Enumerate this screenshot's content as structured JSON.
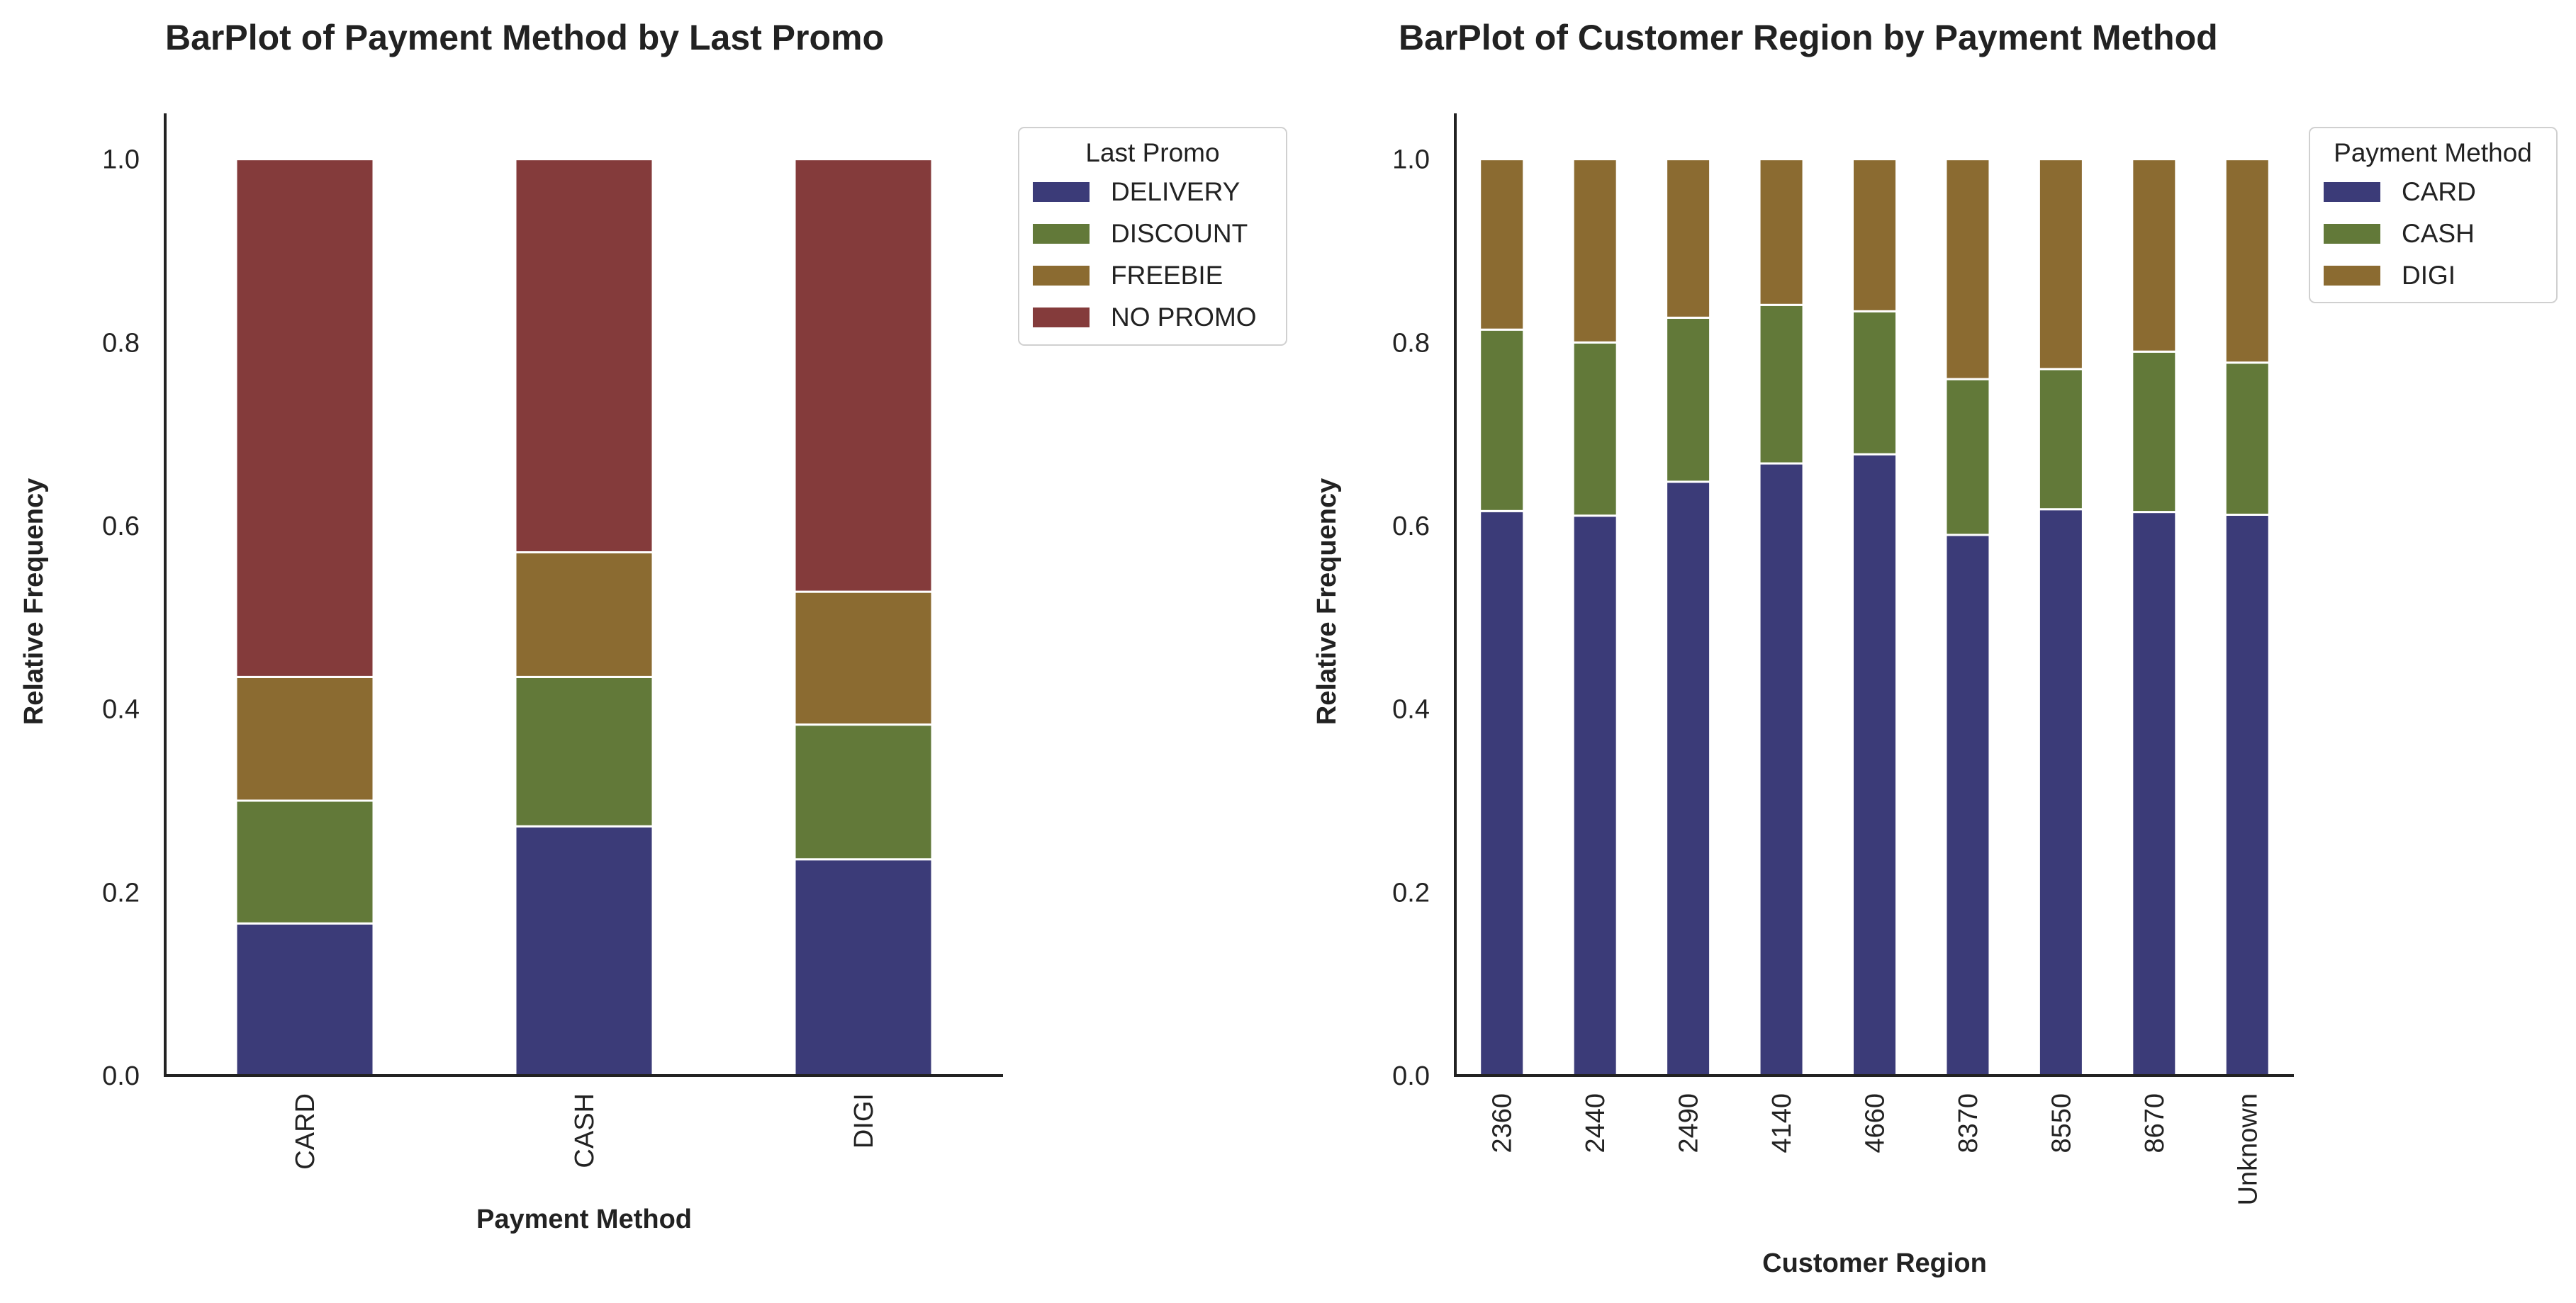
{
  "chart_data": [
    {
      "type": "bar",
      "stacked": true,
      "title": "BarPlot of Payment Method by Last Promo",
      "xlabel": "Payment Method",
      "ylabel": "Relative Frequency",
      "categories": [
        "CARD",
        "CASH",
        "DIGI"
      ],
      "ylim": [
        0,
        1.05
      ],
      "yticks": [
        "0.0",
        "0.2",
        "0.4",
        "0.6",
        "0.8",
        "1.0"
      ],
      "legend_title": "Last Promo",
      "legend_position": "outside-top-right",
      "grid": false,
      "series": [
        {
          "name": "DELIVERY",
          "color": "#3b3b78",
          "values": [
            0.166,
            0.272,
            0.236
          ]
        },
        {
          "name": "DISCOUNT",
          "color": "#627939",
          "values": [
            0.134,
            0.163,
            0.147
          ]
        },
        {
          "name": "FREEBIE",
          "color": "#8b6b31",
          "values": [
            0.135,
            0.136,
            0.145
          ]
        },
        {
          "name": "NO PROMO",
          "color": "#843b3b",
          "values": [
            0.565,
            0.429,
            0.472
          ]
        }
      ]
    },
    {
      "type": "bar",
      "stacked": true,
      "title": "BarPlot of Customer Region by Payment Method",
      "xlabel": "Customer Region",
      "ylabel": "Relative Frequency",
      "categories": [
        "2360",
        "2440",
        "2490",
        "4140",
        "4660",
        "8370",
        "8550",
        "8670",
        "Unknown"
      ],
      "ylim": [
        0,
        1.05
      ],
      "yticks": [
        "0.0",
        "0.2",
        "0.4",
        "0.6",
        "0.8",
        "1.0"
      ],
      "legend_title": "Payment Method",
      "legend_position": "outside-top-right",
      "grid": false,
      "series": [
        {
          "name": "CARD",
          "color": "#3b3b78",
          "values": [
            0.616,
            0.611,
            0.648,
            0.668,
            0.678,
            0.59,
            0.618,
            0.615,
            0.612
          ]
        },
        {
          "name": "CASH",
          "color": "#627939",
          "values": [
            0.198,
            0.189,
            0.179,
            0.173,
            0.156,
            0.17,
            0.153,
            0.175,
            0.166
          ]
        },
        {
          "name": "DIGI",
          "color": "#8b6b31",
          "values": [
            0.186,
            0.2,
            0.173,
            0.159,
            0.166,
            0.24,
            0.229,
            0.21,
            0.222
          ]
        }
      ]
    }
  ]
}
